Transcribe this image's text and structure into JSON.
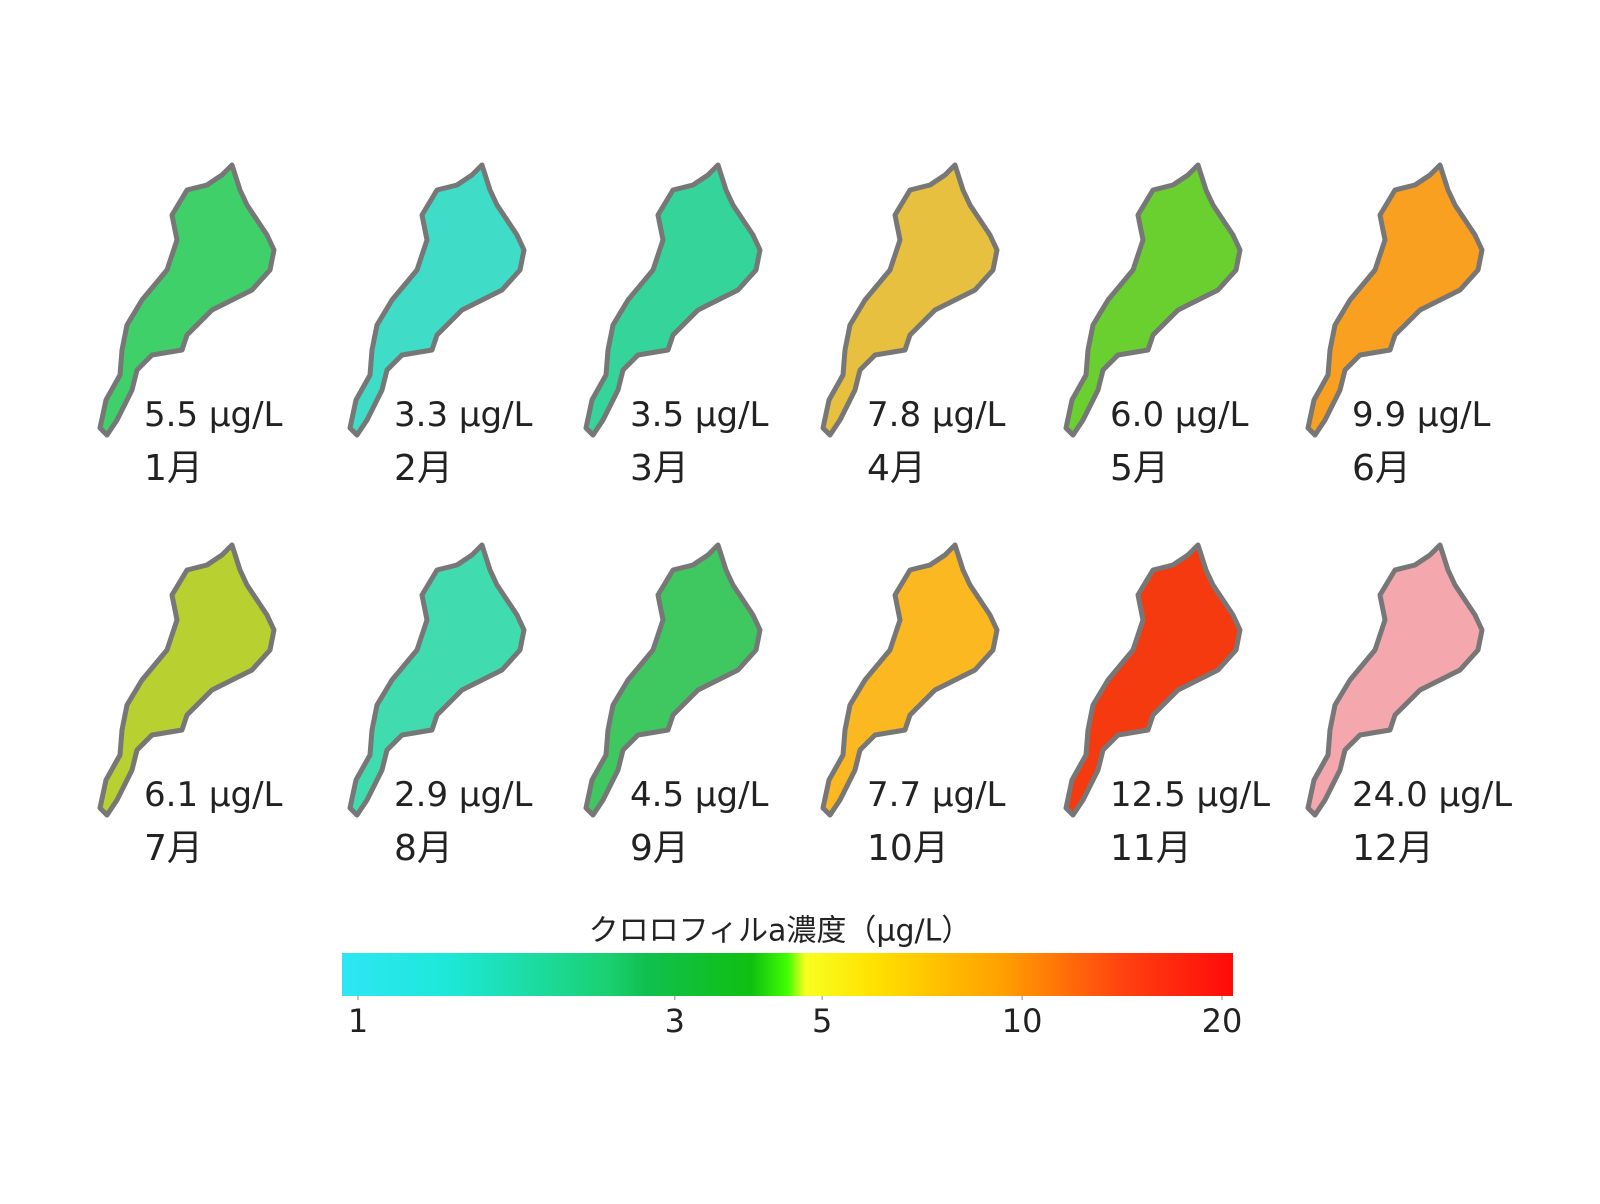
{
  "panels": [
    {
      "value_label": "5.5 μg/L",
      "month": "1月",
      "color": "#3fd06a"
    },
    {
      "value_label": "3.3 μg/L",
      "month": "2月",
      "color": "#3fdcc8"
    },
    {
      "value_label": "3.5 μg/L",
      "month": "3月",
      "color": "#35d49a"
    },
    {
      "value_label": "7.8 μg/L",
      "month": "4月",
      "color": "#e8c040"
    },
    {
      "value_label": "6.0 μg/L",
      "month": "5月",
      "color": "#6ad030"
    },
    {
      "value_label": "9.9 μg/L",
      "month": "6月",
      "color": "#f9a020"
    },
    {
      "value_label": "6.1 μg/L",
      "month": "7月",
      "color": "#b8d030"
    },
    {
      "value_label": "2.9 μg/L",
      "month": "8月",
      "color": "#40dcb0"
    },
    {
      "value_label": "4.5 μg/L",
      "month": "9月",
      "color": "#40c860"
    },
    {
      "value_label": "7.7 μg/L",
      "month": "10月",
      "color": "#fbb820"
    },
    {
      "value_label": "12.5 μg/L",
      "month": "11月",
      "color": "#f53a10"
    },
    {
      "value_label": "24.0 μg/L",
      "month": "12月",
      "color": "#f4a8ad"
    }
  ],
  "colorbar": {
    "title": "クロロフィルa濃度（μg/L）",
    "log_scale": true,
    "lim": [
      1,
      20
    ],
    "ticks": [
      1,
      3,
      5,
      10,
      20
    ]
  }
}
